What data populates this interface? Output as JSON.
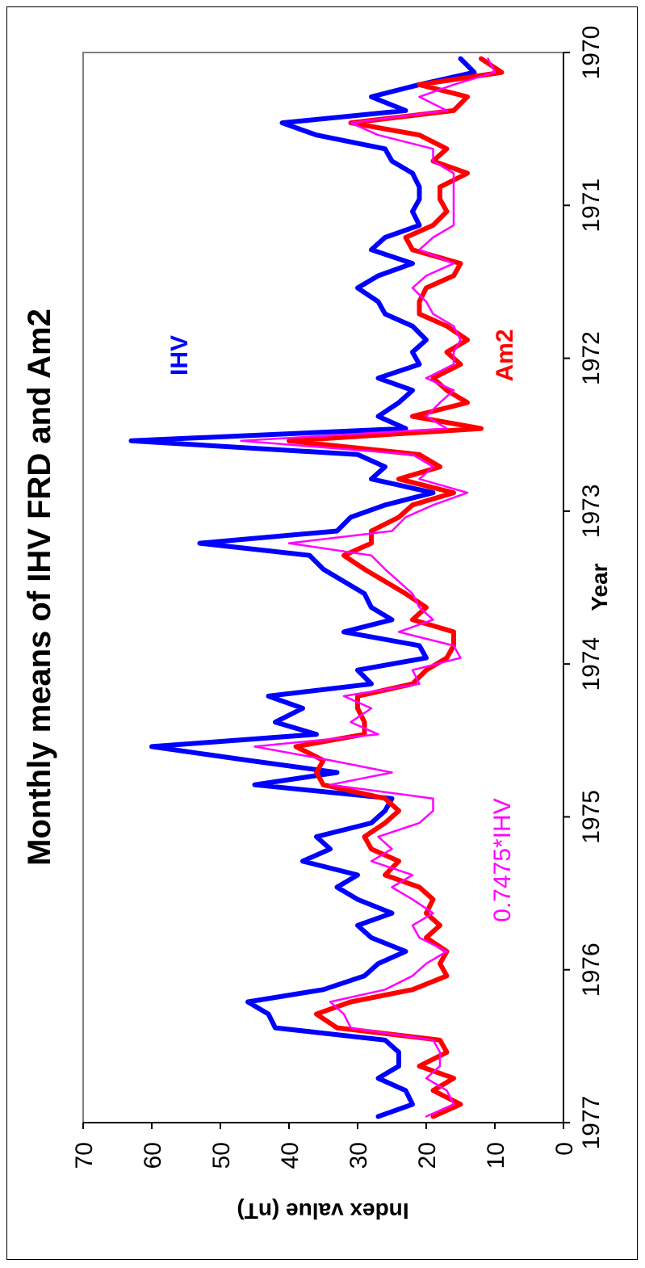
{
  "chart_data": {
    "type": "line",
    "title": "Monthly means of IHV FRD and Am2",
    "xlabel": "Year",
    "ylabel": "Index value (nT)",
    "xlim": [
      1970,
      1977
    ],
    "ylim": [
      0,
      70
    ],
    "xticks": [
      "1970",
      "1971",
      "1972",
      "1973",
      "1974",
      "1975",
      "1976",
      "1977"
    ],
    "yticks": [
      "0",
      "10",
      "20",
      "30",
      "40",
      "50",
      "60",
      "70"
    ],
    "grid": false,
    "series": [
      {
        "name": "IHV",
        "color": "#0000ff",
        "stroke": 6,
        "x": [
          1970.04,
          1970.13,
          1970.21,
          1970.29,
          1970.38,
          1970.46,
          1970.54,
          1970.63,
          1970.71,
          1970.79,
          1970.88,
          1970.96,
          1971.04,
          1971.13,
          1971.21,
          1971.29,
          1971.38,
          1971.46,
          1971.54,
          1971.63,
          1971.71,
          1971.79,
          1971.88,
          1971.96,
          1972.04,
          1972.13,
          1972.21,
          1972.29,
          1972.38,
          1972.46,
          1972.54,
          1972.63,
          1972.71,
          1972.79,
          1972.88,
          1972.96,
          1973.04,
          1973.13,
          1973.21,
          1973.29,
          1973.38,
          1973.46,
          1973.54,
          1973.63,
          1973.71,
          1973.79,
          1973.88,
          1973.96,
          1974.04,
          1974.13,
          1974.21,
          1974.29,
          1974.38,
          1974.46,
          1974.54,
          1974.63,
          1974.71,
          1974.79,
          1974.88,
          1974.96,
          1975.04,
          1975.13,
          1975.21,
          1975.29,
          1975.38,
          1975.46,
          1975.54,
          1975.63,
          1975.71,
          1975.79,
          1975.88,
          1975.96,
          1976.04,
          1976.13,
          1976.21,
          1976.29,
          1976.38,
          1976.46,
          1976.54,
          1976.63,
          1976.71,
          1976.79,
          1976.88,
          1976.96
        ],
        "values": [
          15,
          13,
          21,
          28,
          23,
          41,
          36,
          26,
          25,
          22,
          21,
          21,
          22,
          21,
          26,
          28,
          22,
          27,
          30,
          27,
          26,
          22,
          20,
          22,
          21,
          27,
          22,
          24,
          27,
          23,
          63,
          30,
          26,
          28,
          19,
          26,
          31,
          33,
          53,
          37,
          35,
          32,
          29,
          28,
          25,
          32,
          21,
          20,
          30,
          28,
          43,
          38,
          42,
          36,
          60,
          46,
          33,
          45,
          25,
          26,
          28,
          36,
          34,
          38,
          30,
          33,
          30,
          25,
          30,
          28,
          23,
          27,
          29,
          35,
          46,
          43,
          42,
          26,
          24,
          24,
          27,
          23,
          22,
          27
        ]
      },
      {
        "name": "Am2",
        "color": "#ff0000",
        "stroke": 6,
        "x": [
          1970.04,
          1970.13,
          1970.21,
          1970.29,
          1970.38,
          1970.46,
          1970.54,
          1970.63,
          1970.71,
          1970.79,
          1970.88,
          1970.96,
          1971.04,
          1971.13,
          1971.21,
          1971.29,
          1971.38,
          1971.46,
          1971.54,
          1971.63,
          1971.71,
          1971.79,
          1971.88,
          1971.96,
          1972.04,
          1972.13,
          1972.21,
          1972.29,
          1972.38,
          1972.46,
          1972.54,
          1972.63,
          1972.71,
          1972.79,
          1972.88,
          1972.96,
          1973.04,
          1973.13,
          1973.21,
          1973.29,
          1973.38,
          1973.46,
          1973.54,
          1973.63,
          1973.71,
          1973.79,
          1973.88,
          1973.96,
          1974.04,
          1974.13,
          1974.21,
          1974.29,
          1974.38,
          1974.46,
          1974.54,
          1974.63,
          1974.71,
          1974.79,
          1974.88,
          1974.96,
          1975.04,
          1975.13,
          1975.21,
          1975.29,
          1975.38,
          1975.46,
          1975.54,
          1975.63,
          1975.71,
          1975.79,
          1975.88,
          1975.96,
          1976.04,
          1976.13,
          1976.21,
          1976.29,
          1976.38,
          1976.46,
          1976.54,
          1976.63,
          1976.71,
          1976.79,
          1976.88,
          1976.96
        ],
        "values": [
          12,
          9,
          21,
          14,
          16,
          31,
          21,
          17,
          19,
          14,
          18,
          18,
          17,
          19,
          23,
          22,
          15,
          16,
          20,
          21,
          21,
          17,
          14,
          17,
          15,
          19,
          17,
          14,
          22,
          12,
          40,
          21,
          18,
          24,
          16,
          22,
          24,
          28,
          28,
          32,
          29,
          26,
          23,
          20,
          22,
          16,
          16,
          17,
          20,
          22,
          30,
          30,
          29,
          29,
          39,
          35,
          36,
          35,
          26,
          24,
          26,
          29,
          28,
          24,
          26,
          21,
          19,
          20,
          18,
          20,
          17,
          18,
          17,
          22,
          31,
          36,
          33,
          18,
          17,
          21,
          16,
          19,
          15,
          19
        ]
      },
      {
        "name": "0.7475*IHV",
        "color": "#ff00ff",
        "stroke": 2.5,
        "x": [
          1970.04,
          1970.13,
          1970.21,
          1970.29,
          1970.38,
          1970.46,
          1970.54,
          1970.63,
          1970.71,
          1970.79,
          1970.88,
          1970.96,
          1971.04,
          1971.13,
          1971.21,
          1971.29,
          1971.38,
          1971.46,
          1971.54,
          1971.63,
          1971.71,
          1971.79,
          1971.88,
          1971.96,
          1972.04,
          1972.13,
          1972.21,
          1972.29,
          1972.38,
          1972.46,
          1972.54,
          1972.63,
          1972.71,
          1972.79,
          1972.88,
          1972.96,
          1973.04,
          1973.13,
          1973.21,
          1973.29,
          1973.38,
          1973.46,
          1973.54,
          1973.63,
          1973.71,
          1973.79,
          1973.88,
          1973.96,
          1974.04,
          1974.13,
          1974.21,
          1974.29,
          1974.38,
          1974.46,
          1974.54,
          1974.63,
          1974.71,
          1974.79,
          1974.88,
          1974.96,
          1975.04,
          1975.13,
          1975.21,
          1975.29,
          1975.38,
          1975.46,
          1975.54,
          1975.63,
          1975.71,
          1975.79,
          1975.88,
          1975.96,
          1976.04,
          1976.13,
          1976.21,
          1976.29,
          1976.38,
          1976.46,
          1976.54,
          1976.63,
          1976.71,
          1976.79,
          1976.88,
          1976.96
        ],
        "values": [
          11,
          10,
          16,
          21,
          17,
          31,
          27,
          19,
          19,
          16,
          16,
          16,
          16,
          16,
          19,
          21,
          16,
          20,
          22,
          20,
          19,
          16,
          15,
          16,
          16,
          20,
          16,
          18,
          20,
          17,
          47,
          22,
          19,
          21,
          14,
          19,
          23,
          25,
          40,
          28,
          26,
          24,
          22,
          21,
          19,
          24,
          16,
          15,
          22,
          21,
          32,
          28,
          31,
          27,
          45,
          34,
          25,
          34,
          19,
          19,
          21,
          27,
          25,
          28,
          22,
          25,
          22,
          19,
          22,
          21,
          17,
          20,
          22,
          26,
          34,
          32,
          31,
          19,
          18,
          18,
          20,
          17,
          16,
          20
        ]
      }
    ]
  }
}
